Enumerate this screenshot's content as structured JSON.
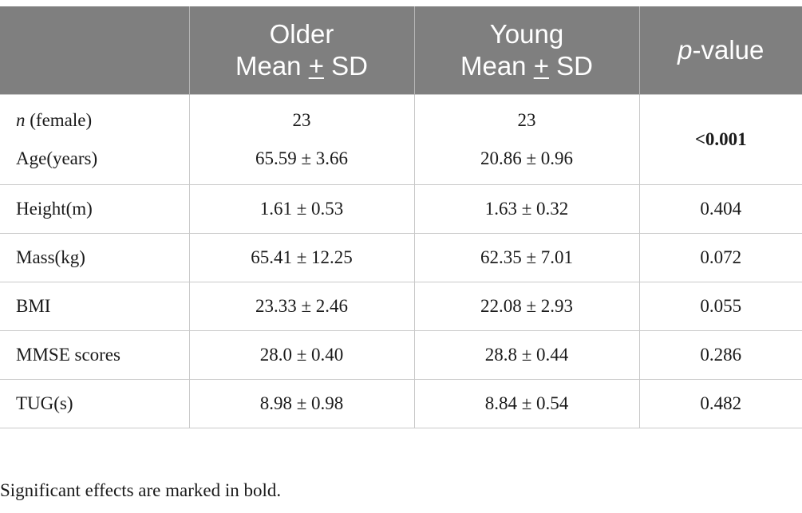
{
  "header": {
    "col0": "",
    "older_line1": "Older",
    "older_line2_pre": "Mean ",
    "older_line2_pm": "+",
    "older_line2_post": " SD",
    "young_line1": "Young",
    "young_line2_pre": "Mean ",
    "young_line2_pm": "+",
    "young_line2_post": " SD",
    "pvalue_italic": "p",
    "pvalue_rest": "-value"
  },
  "rows": {
    "first": {
      "label_n_italic": "n",
      "label_n_rest": " (female)",
      "label_age": "Age(years)",
      "older_n": "23",
      "older_age": "65.59 ± 3.66",
      "young_n": "23",
      "young_age": "20.86 ± 0.96",
      "pvalue": "<0.001"
    },
    "height": {
      "label": "Height(m)",
      "older": "1.61 ± 0.53",
      "young": "1.63 ± 0.32",
      "pvalue": "0.404"
    },
    "mass": {
      "label": "Mass(kg)",
      "older": "65.41 ± 12.25",
      "young": "62.35 ± 7.01",
      "pvalue": "0.072"
    },
    "bmi": {
      "label": "BMI",
      "older": "23.33 ± 2.46",
      "young": "22.08 ± 2.93",
      "pvalue": "0.055"
    },
    "mmse": {
      "label": "MMSE scores",
      "older": "28.0 ± 0.40",
      "young": "28.8 ± 0.44",
      "pvalue": "0.286"
    },
    "tug": {
      "label": "TUG(s)",
      "older": "8.98 ± 0.98",
      "young": "8.84 ± 0.54",
      "pvalue": "0.482"
    }
  },
  "footnote": "Significant effects are marked in bold.",
  "colors": {
    "header_bg": "#7f7f7f",
    "header_text": "#ffffff",
    "grid": "#c9c9c9"
  }
}
